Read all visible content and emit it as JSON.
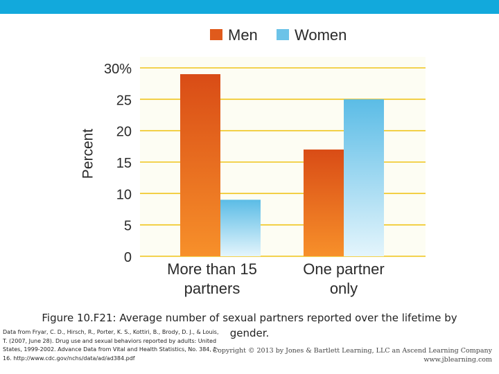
{
  "chart_data": {
    "type": "bar",
    "categories": [
      [
        "More than 15",
        "partners"
      ],
      [
        "One partner",
        "only"
      ]
    ],
    "series": [
      {
        "name": "Men",
        "values": [
          29,
          17
        ],
        "color": "#e05a1c"
      },
      {
        "name": "Women",
        "values": [
          9,
          25
        ],
        "color": "#6cc3e8"
      }
    ],
    "ylabel": "Percent",
    "yticks": [
      "0",
      "5",
      "10",
      "15",
      "20",
      "25",
      "30%"
    ],
    "ylim": [
      0,
      30
    ],
    "grid": true,
    "legend": "top"
  },
  "caption": "Figure 10.F21: Average number of sexual partners reported over the lifetime by gender.",
  "source": "Data from Fryar, C. D., Hirsch, R., Porter, K. S., Kottiri, B., Brody, D. J., & Louis, T. (2007, June 28). Drug use and sexual behaviors reported by adults: United States, 1999-2002. Advance Data from Vital and Health Statistics, No. 384, 1-16. http://www.cdc.gov/nchs/data/ad/ad384.pdf",
  "copyright": [
    "Copyright © 2013 by Jones & Bartlett Learning, LLC an Ascend Learning Company",
    "www.jblearning.com"
  ]
}
